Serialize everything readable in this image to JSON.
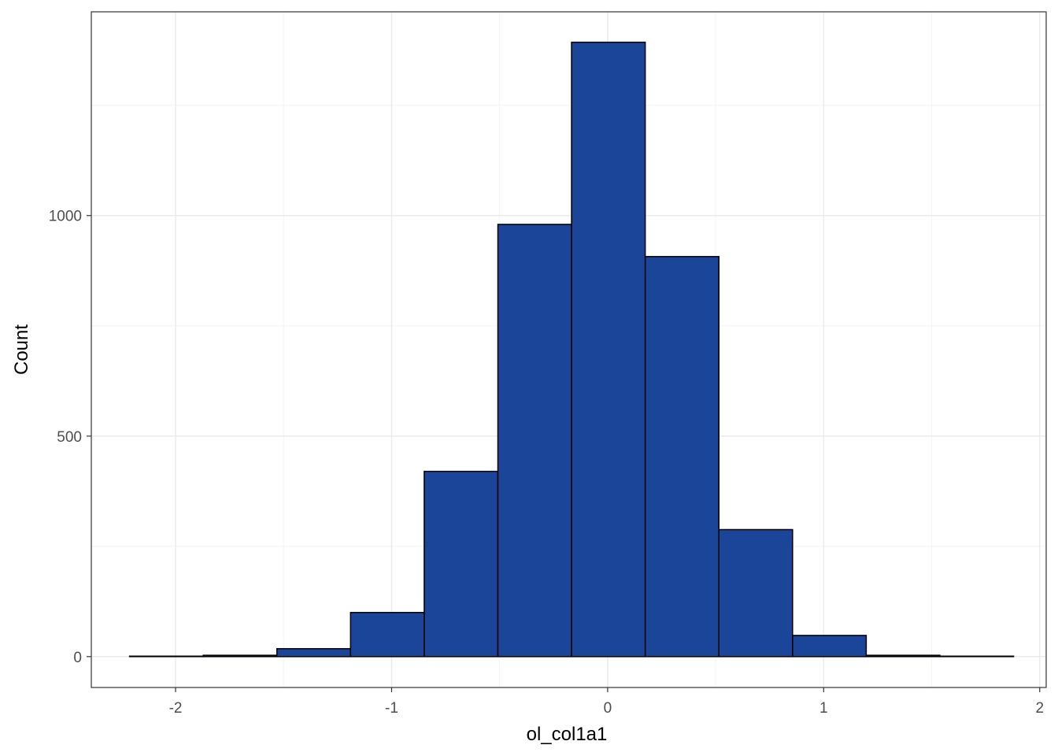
{
  "chart_data": {
    "type": "bar",
    "xlabel": "ol_col1a1",
    "ylabel": "Count",
    "xlim": [
      -2.39,
      2.03
    ],
    "ylim": [
      -70,
      1462
    ],
    "x_ticks": [
      -2,
      -1,
      0,
      1,
      2
    ],
    "x_tick_labels": [
      "-2",
      "-1",
      "0",
      "1",
      "2"
    ],
    "y_ticks": [
      0,
      500,
      1000
    ],
    "y_tick_labels": [
      "0",
      "500",
      "1000"
    ],
    "y_minor_grid": [
      250,
      750,
      1250
    ],
    "x_minor_grid": [
      -1.5,
      -0.5,
      0.5,
      1.5
    ],
    "bins": [
      {
        "x0": -2.213,
        "x1": -1.872,
        "count": 1
      },
      {
        "x0": -1.872,
        "x1": -1.531,
        "count": 3
      },
      {
        "x0": -1.531,
        "x1": -1.19,
        "count": 18
      },
      {
        "x0": -1.19,
        "x1": -0.849,
        "count": 100
      },
      {
        "x0": -0.849,
        "x1": -0.508,
        "count": 420
      },
      {
        "x0": -0.508,
        "x1": -0.167,
        "count": 980
      },
      {
        "x0": -0.167,
        "x1": 0.174,
        "count": 1393
      },
      {
        "x0": 0.174,
        "x1": 0.515,
        "count": 907
      },
      {
        "x0": 0.515,
        "x1": 0.856,
        "count": 288
      },
      {
        "x0": 0.856,
        "x1": 1.197,
        "count": 48
      },
      {
        "x0": 1.197,
        "x1": 1.538,
        "count": 3
      },
      {
        "x0": 1.538,
        "x1": 1.879,
        "count": 1
      }
    ],
    "grid": true,
    "colors": {
      "bar_fill": "#1A4599",
      "bar_stroke": "#000000",
      "grid_major": "#EBEBEB",
      "grid_minor": "#F4F4F4",
      "panel_border": "#333333",
      "tick_label": "#4D4D4D"
    }
  }
}
